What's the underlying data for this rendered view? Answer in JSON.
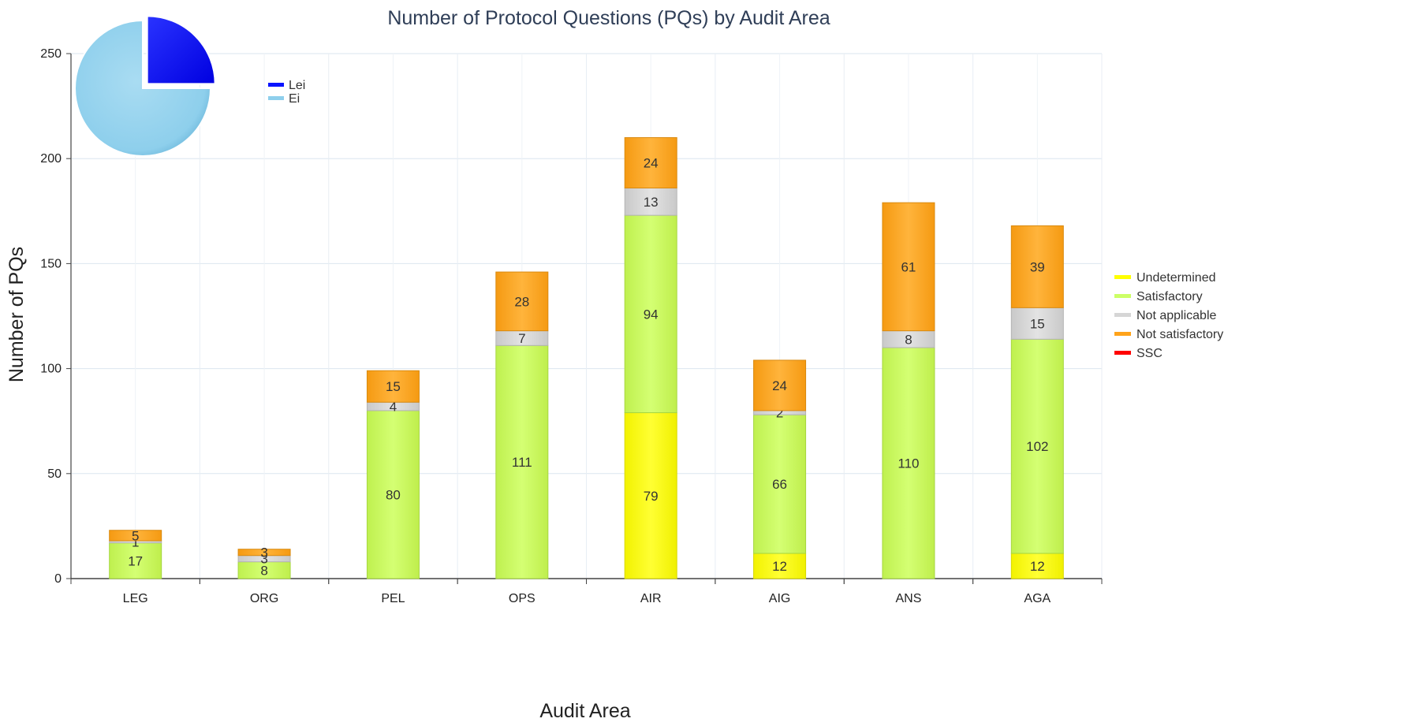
{
  "chart_data": [
    {
      "type": "bar",
      "stacked": true,
      "title": "Number of Protocol Questions (PQs) by Audit Area",
      "xlabel": "Audit Area",
      "ylabel": "Number of PQs",
      "ylim": [
        0,
        250
      ],
      "yticks": [
        0,
        50,
        100,
        150,
        200,
        250
      ],
      "grid": true,
      "legend_position": "right",
      "categories": [
        "LEG",
        "ORG",
        "PEL",
        "OPS",
        "AIR",
        "AIG",
        "ANS",
        "AGA"
      ],
      "series": [
        {
          "name": "Undetermined",
          "color": "#ffff00",
          "values": [
            0,
            0,
            0,
            0,
            79,
            12,
            0,
            12
          ]
        },
        {
          "name": "Satisfactory",
          "color": "#ccff66",
          "values": [
            17,
            8,
            80,
            111,
            94,
            66,
            110,
            102
          ]
        },
        {
          "name": "Not applicable",
          "color": "#d6d6d6",
          "values": [
            1,
            3,
            4,
            7,
            13,
            2,
            8,
            15
          ]
        },
        {
          "name": "Not satisfactory",
          "color": "#ffa31a",
          "values": [
            5,
            3,
            15,
            28,
            24,
            24,
            61,
            39
          ]
        },
        {
          "name": "SSC",
          "color": "#ff0000",
          "values": [
            0,
            0,
            0,
            0,
            0,
            0,
            0,
            0
          ]
        }
      ]
    },
    {
      "type": "pie",
      "legend_position": "top-right",
      "slices": [
        {
          "name": "Lei",
          "value": 25,
          "color": "#0a14ff",
          "exploded": true
        },
        {
          "name": "Ei",
          "value": 75,
          "color": "#8ecfec",
          "exploded": false
        }
      ]
    }
  ]
}
